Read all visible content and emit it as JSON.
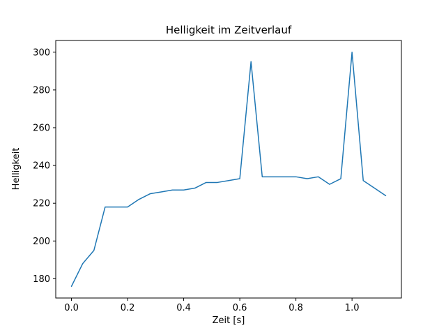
{
  "chart_data": {
    "type": "line",
    "title": "Helligkeit im Zeitverlauf",
    "xlabel": "Zeit [s]",
    "ylabel": "Helligkeit",
    "x": [
      0.0,
      0.04,
      0.08,
      0.12,
      0.16,
      0.2,
      0.24,
      0.28,
      0.32,
      0.36,
      0.4,
      0.44,
      0.48,
      0.52,
      0.56,
      0.6,
      0.64,
      0.68,
      0.72,
      0.76,
      0.8,
      0.84,
      0.88,
      0.92,
      0.96,
      1.0,
      1.04,
      1.08,
      1.12
    ],
    "y": [
      176,
      188,
      195,
      218,
      218,
      218,
      222,
      225,
      226,
      227,
      227,
      228,
      231,
      231,
      232,
      233,
      295,
      234,
      234,
      234,
      234,
      233,
      234,
      230,
      233,
      300,
      232,
      228,
      224
    ],
    "xlim": [
      -0.056,
      1.176
    ],
    "ylim": [
      169.8,
      306.2
    ],
    "xticks": {
      "values": [
        0.0,
        0.2,
        0.4,
        0.6,
        0.8,
        1.0
      ],
      "labels": [
        "0.0",
        "0.2",
        "0.4",
        "0.6",
        "0.8",
        "1.0"
      ]
    },
    "yticks": {
      "values": [
        180,
        200,
        220,
        240,
        260,
        280,
        300
      ],
      "labels": [
        "180",
        "200",
        "220",
        "240",
        "260",
        "280",
        "300"
      ]
    },
    "line_color": "#1f77b4",
    "grid": false,
    "legend": null
  }
}
